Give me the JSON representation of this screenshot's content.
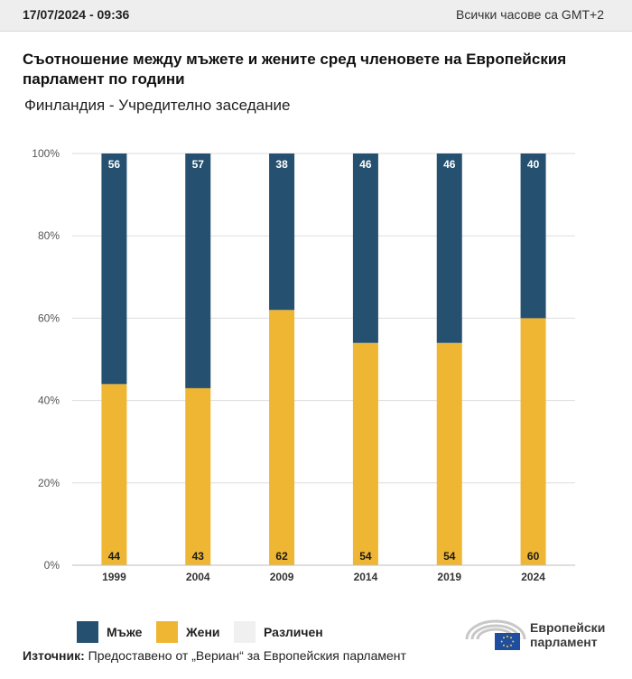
{
  "header": {
    "date": "17/07/2024 - 09:36",
    "timezone": "Всички часове са GMT+2"
  },
  "title": "Съотношение между мъжете и жените сред членовете на Европейския парламент по години",
  "subtitle": "Финландия - Учредително заседание",
  "colors": {
    "men": "#25506f",
    "women": "#efb633",
    "other": "#f0f0f0",
    "grid": "#dddddd",
    "bar_label_light": "#ffffff",
    "bar_label_dark": "#1a1a1a"
  },
  "legend": [
    {
      "label": "Мъже",
      "color": "#25506f"
    },
    {
      "label": "Жени",
      "color": "#efb633"
    },
    {
      "label": "Различен",
      "color": "#f0f0f0"
    }
  ],
  "source": {
    "label": "Източник:",
    "text": " Предоставено от „Вериан“ за Европейския парламент"
  },
  "logo": {
    "icon": "ep-hemicycle-logo",
    "line1": "Европейски",
    "line2": "парламент"
  },
  "chart_data": {
    "type": "bar",
    "stacked": true,
    "categories": [
      "1999",
      "2004",
      "2009",
      "2014",
      "2019",
      "2024"
    ],
    "series": [
      {
        "name": "Жени",
        "values": [
          44,
          43,
          62,
          54,
          54,
          60
        ]
      },
      {
        "name": "Мъже",
        "values": [
          56,
          57,
          38,
          46,
          46,
          40
        ]
      }
    ],
    "ylim": [
      0,
      100
    ],
    "yticks": [
      "0%",
      "20%",
      "40%",
      "60%",
      "80%",
      "100%"
    ],
    "grid": true,
    "legend_position": "bottom-left"
  }
}
